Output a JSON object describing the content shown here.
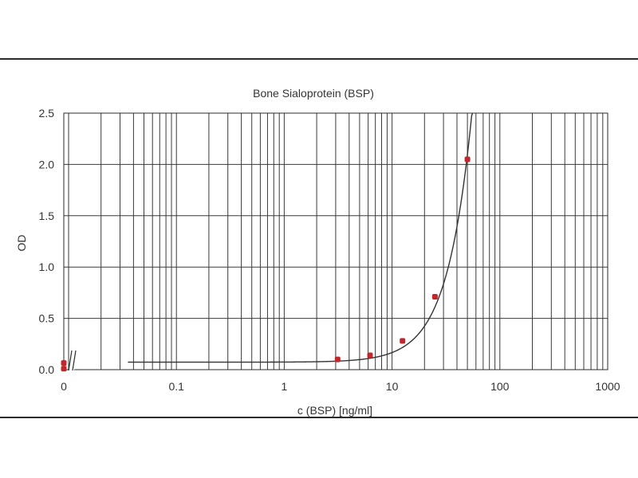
{
  "chart_data": {
    "type": "scatter",
    "title": "Bone Sialoprotein (BSP)",
    "xlabel": "c (BSP) [ng/ml]",
    "ylabel": "OD",
    "x_scale": "log",
    "xlim": [
      0.01,
      1000
    ],
    "ylim": [
      0,
      2.5
    ],
    "x_ticks": [
      {
        "value": 0,
        "label": "0"
      },
      {
        "value": 0.1,
        "label": "0.1"
      },
      {
        "value": 1,
        "label": "1"
      },
      {
        "value": 10,
        "label": "10"
      },
      {
        "value": 100,
        "label": "100"
      },
      {
        "value": 1000,
        "label": "1000"
      }
    ],
    "y_ticks": [
      {
        "value": 0,
        "label": "0.0"
      },
      {
        "value": 0.5,
        "label": "0.5"
      },
      {
        "value": 1.0,
        "label": "1.0"
      },
      {
        "value": 1.5,
        "label": "1.5"
      },
      {
        "value": 2.0,
        "label": "2.0"
      },
      {
        "value": 2.5,
        "label": "2.5"
      }
    ],
    "grid": true,
    "axis_break": true,
    "points": [
      {
        "x": 0,
        "y": 0.065
      },
      {
        "x": 0,
        "y": 0.01
      },
      {
        "x": 3.125,
        "y": 0.1
      },
      {
        "x": 6.25,
        "y": 0.14
      },
      {
        "x": 12.5,
        "y": 0.28
      },
      {
        "x": 25,
        "y": 0.71
      },
      {
        "x": 50,
        "y": 2.05
      }
    ],
    "fit_curve": {
      "baseline": 0.073,
      "coefficient": 0.00115,
      "exponent": 1.91
    },
    "marker_color": "#c0282d",
    "curve_color": "#333333",
    "grid_color": "#3a3a3a"
  }
}
